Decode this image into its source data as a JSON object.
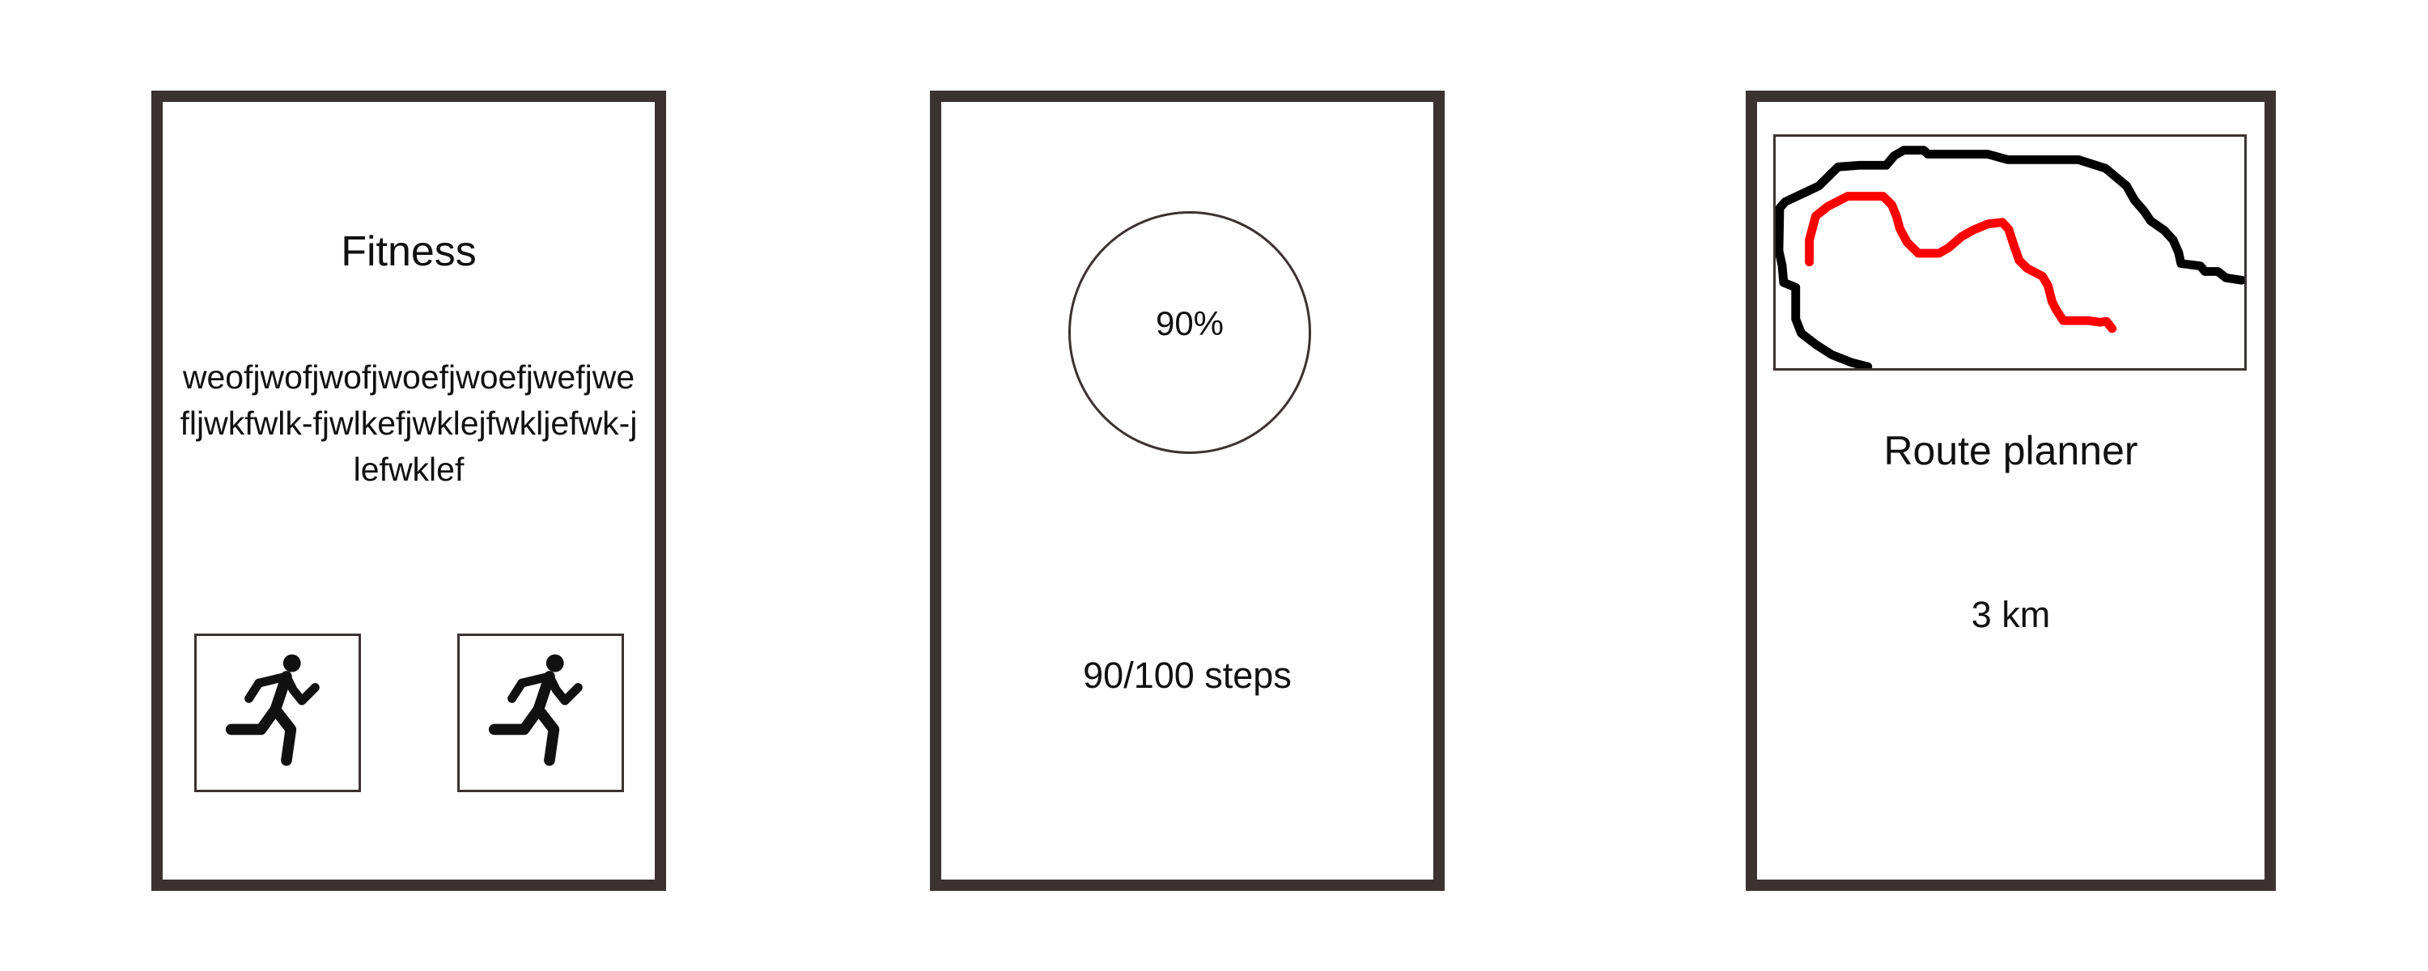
{
  "screens": {
    "fitness": {
      "title": "Fitness",
      "body": "weofjwofjwofjwoefjwoefjwefjwefljwkfwlk-fjwlkefjwklejfwkljefwk-jlefwklef",
      "actions": [
        {
          "icon": "running-person-icon"
        },
        {
          "icon": "running-person-icon"
        }
      ]
    },
    "steps": {
      "progress_label": "90%",
      "progress_fraction": 0.9,
      "steps_text": "90/100 steps"
    },
    "route": {
      "map_icon": "route-map",
      "title": "Route planner",
      "distance": "3 km",
      "colors": {
        "main_path": "#000000",
        "planned_route": "#ff0000"
      }
    }
  },
  "colors": {
    "frame": "#3a3331",
    "background": "#ffffff",
    "text": "#111111"
  }
}
